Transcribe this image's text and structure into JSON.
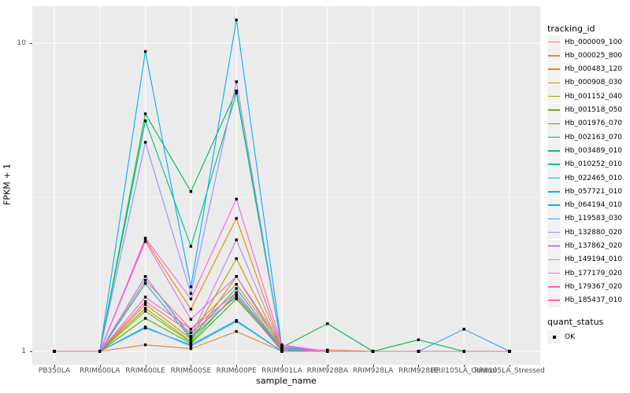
{
  "figure": {
    "background": "#FFFFFF",
    "panel_background": "#EBEBEB",
    "grid_color": "#FFFFFF",
    "axis_text_color": "#4D4D4D",
    "point_color": "#000000"
  },
  "chart_data": {
    "type": "line",
    "title": "",
    "xlabel": "sample_name",
    "ylabel": "FPKM + 1",
    "y_scale": "log10",
    "y_ticks": [
      {
        "label": "1",
        "value": 1
      },
      {
        "label": "10",
        "value": 10
      }
    ],
    "y_minor_breaks": [
      3.1623
    ],
    "y_range_approx": [
      0.93,
      13.1
    ],
    "grid": true,
    "legend_position": "right",
    "point_shape": "filled-square",
    "categories": [
      "PB350LA",
      "RRIM600LA",
      "RRIM600LE",
      "RRIM600SE",
      "RRIM600PE",
      "RRIM901LA",
      "RRIM928BA",
      "RRIM928LA",
      "RRIM928LE",
      "RRII105LA_Control",
      "RRII105LA_Stressed"
    ],
    "series": [
      {
        "name": "Hb_000009_100",
        "color": "#F8766D",
        "values": [
          1,
          1,
          1.7,
          1.18,
          1.65,
          1.04,
          1,
          1,
          1,
          1,
          1
        ]
      },
      {
        "name": "Hb_000025_800",
        "color": "#EA8331",
        "values": [
          1,
          1,
          1.05,
          1.02,
          1.16,
          1.0,
          1.01,
          1,
          1,
          1,
          1
        ]
      },
      {
        "name": "Hb_000483_120",
        "color": "#D89000",
        "values": [
          1,
          1,
          2.3,
          1.37,
          2.7,
          1.02,
          1,
          1,
          1,
          1,
          1
        ]
      },
      {
        "name": "Hb_000908_030",
        "color": "#C09B00",
        "values": [
          1,
          1,
          1.42,
          1.1,
          2.0,
          1.02,
          1,
          1,
          1,
          1,
          1
        ]
      },
      {
        "name": "Hb_001152_040",
        "color": "#A3A500",
        "values": [
          1,
          1,
          1.38,
          1.08,
          1.75,
          1.02,
          1,
          1,
          1,
          1,
          1
        ]
      },
      {
        "name": "Hb_001518_050",
        "color": "#7CAE00",
        "values": [
          1,
          1,
          1.35,
          1.07,
          1.55,
          1.01,
          1,
          1,
          1,
          1,
          1
        ]
      },
      {
        "name": "Hb_001976_070",
        "color": "#39B600",
        "values": [
          1,
          1,
          1.28,
          1.06,
          1.48,
          1.01,
          1,
          1,
          1,
          1,
          1
        ]
      },
      {
        "name": "Hb_002163_070",
        "color": "#00BB4E",
        "values": [
          1,
          1,
          5.9,
          3.3,
          7.0,
          1.03,
          1.23,
          1,
          1.09,
          1,
          1
        ]
      },
      {
        "name": "Hb_003489_010",
        "color": "#00BF7D",
        "values": [
          1,
          1,
          5.6,
          2.19,
          6.9,
          1.02,
          1,
          1,
          1,
          1,
          1
        ]
      },
      {
        "name": "Hb_010252_010",
        "color": "#00C1A3",
        "values": [
          1,
          1,
          1.75,
          1.11,
          1.6,
          1.02,
          1,
          1,
          1,
          1,
          1
        ]
      },
      {
        "name": "Hb_022465_010",
        "color": "#00BFC4",
        "values": [
          1,
          1,
          1.66,
          1.1,
          1.52,
          1.01,
          1,
          1,
          1,
          1,
          1
        ]
      },
      {
        "name": "Hb_057721_010",
        "color": "#00BAE0",
        "values": [
          1,
          1,
          1.19,
          1.05,
          1.26,
          1.0,
          1,
          1,
          1,
          1,
          1
        ]
      },
      {
        "name": "Hb_064194_010",
        "color": "#00B0F6",
        "values": [
          1,
          1,
          9.4,
          1.62,
          11.9,
          1.03,
          1,
          1,
          1,
          1,
          1
        ]
      },
      {
        "name": "Hb_119583_030",
        "color": "#35A2FF",
        "values": [
          1,
          1,
          1.2,
          1.04,
          1.25,
          1.0,
          1,
          1,
          1,
          1.18,
          1
        ]
      },
      {
        "name": "Hb_132880_020",
        "color": "#9590FF",
        "values": [
          1,
          1,
          4.77,
          1.54,
          7.5,
          1.02,
          1,
          1,
          1,
          1,
          1
        ]
      },
      {
        "name": "Hb_137862_020",
        "color": "#C77CFF",
        "values": [
          1,
          1,
          1.75,
          1.12,
          2.3,
          1.02,
          1,
          1,
          1,
          1,
          1
        ]
      },
      {
        "name": "Hb_149194_010",
        "color": "#E76BF3",
        "values": [
          1,
          1,
          2.27,
          1.27,
          1.75,
          1.05,
          1,
          1,
          1,
          1,
          1
        ]
      },
      {
        "name": "Hb_177179_020",
        "color": "#FA62DB",
        "values": [
          1,
          1,
          2.33,
          1.48,
          3.12,
          1.04,
          1,
          1,
          1,
          1,
          1
        ]
      },
      {
        "name": "Hb_179367_020",
        "color": "#FF62BC",
        "values": [
          1,
          1,
          1.5,
          1.18,
          1.55,
          1.02,
          1,
          1,
          1,
          1,
          1
        ]
      },
      {
        "name": "Hb_185437_010",
        "color": "#FF6A98",
        "values": [
          1,
          1,
          1.45,
          1.15,
          1.5,
          1.0,
          1,
          1,
          1,
          1,
          1
        ]
      }
    ]
  },
  "legend": {
    "tracking_title": "tracking_id",
    "quant_title": "quant_status",
    "quant_items": [
      {
        "label": "OK"
      }
    ]
  }
}
